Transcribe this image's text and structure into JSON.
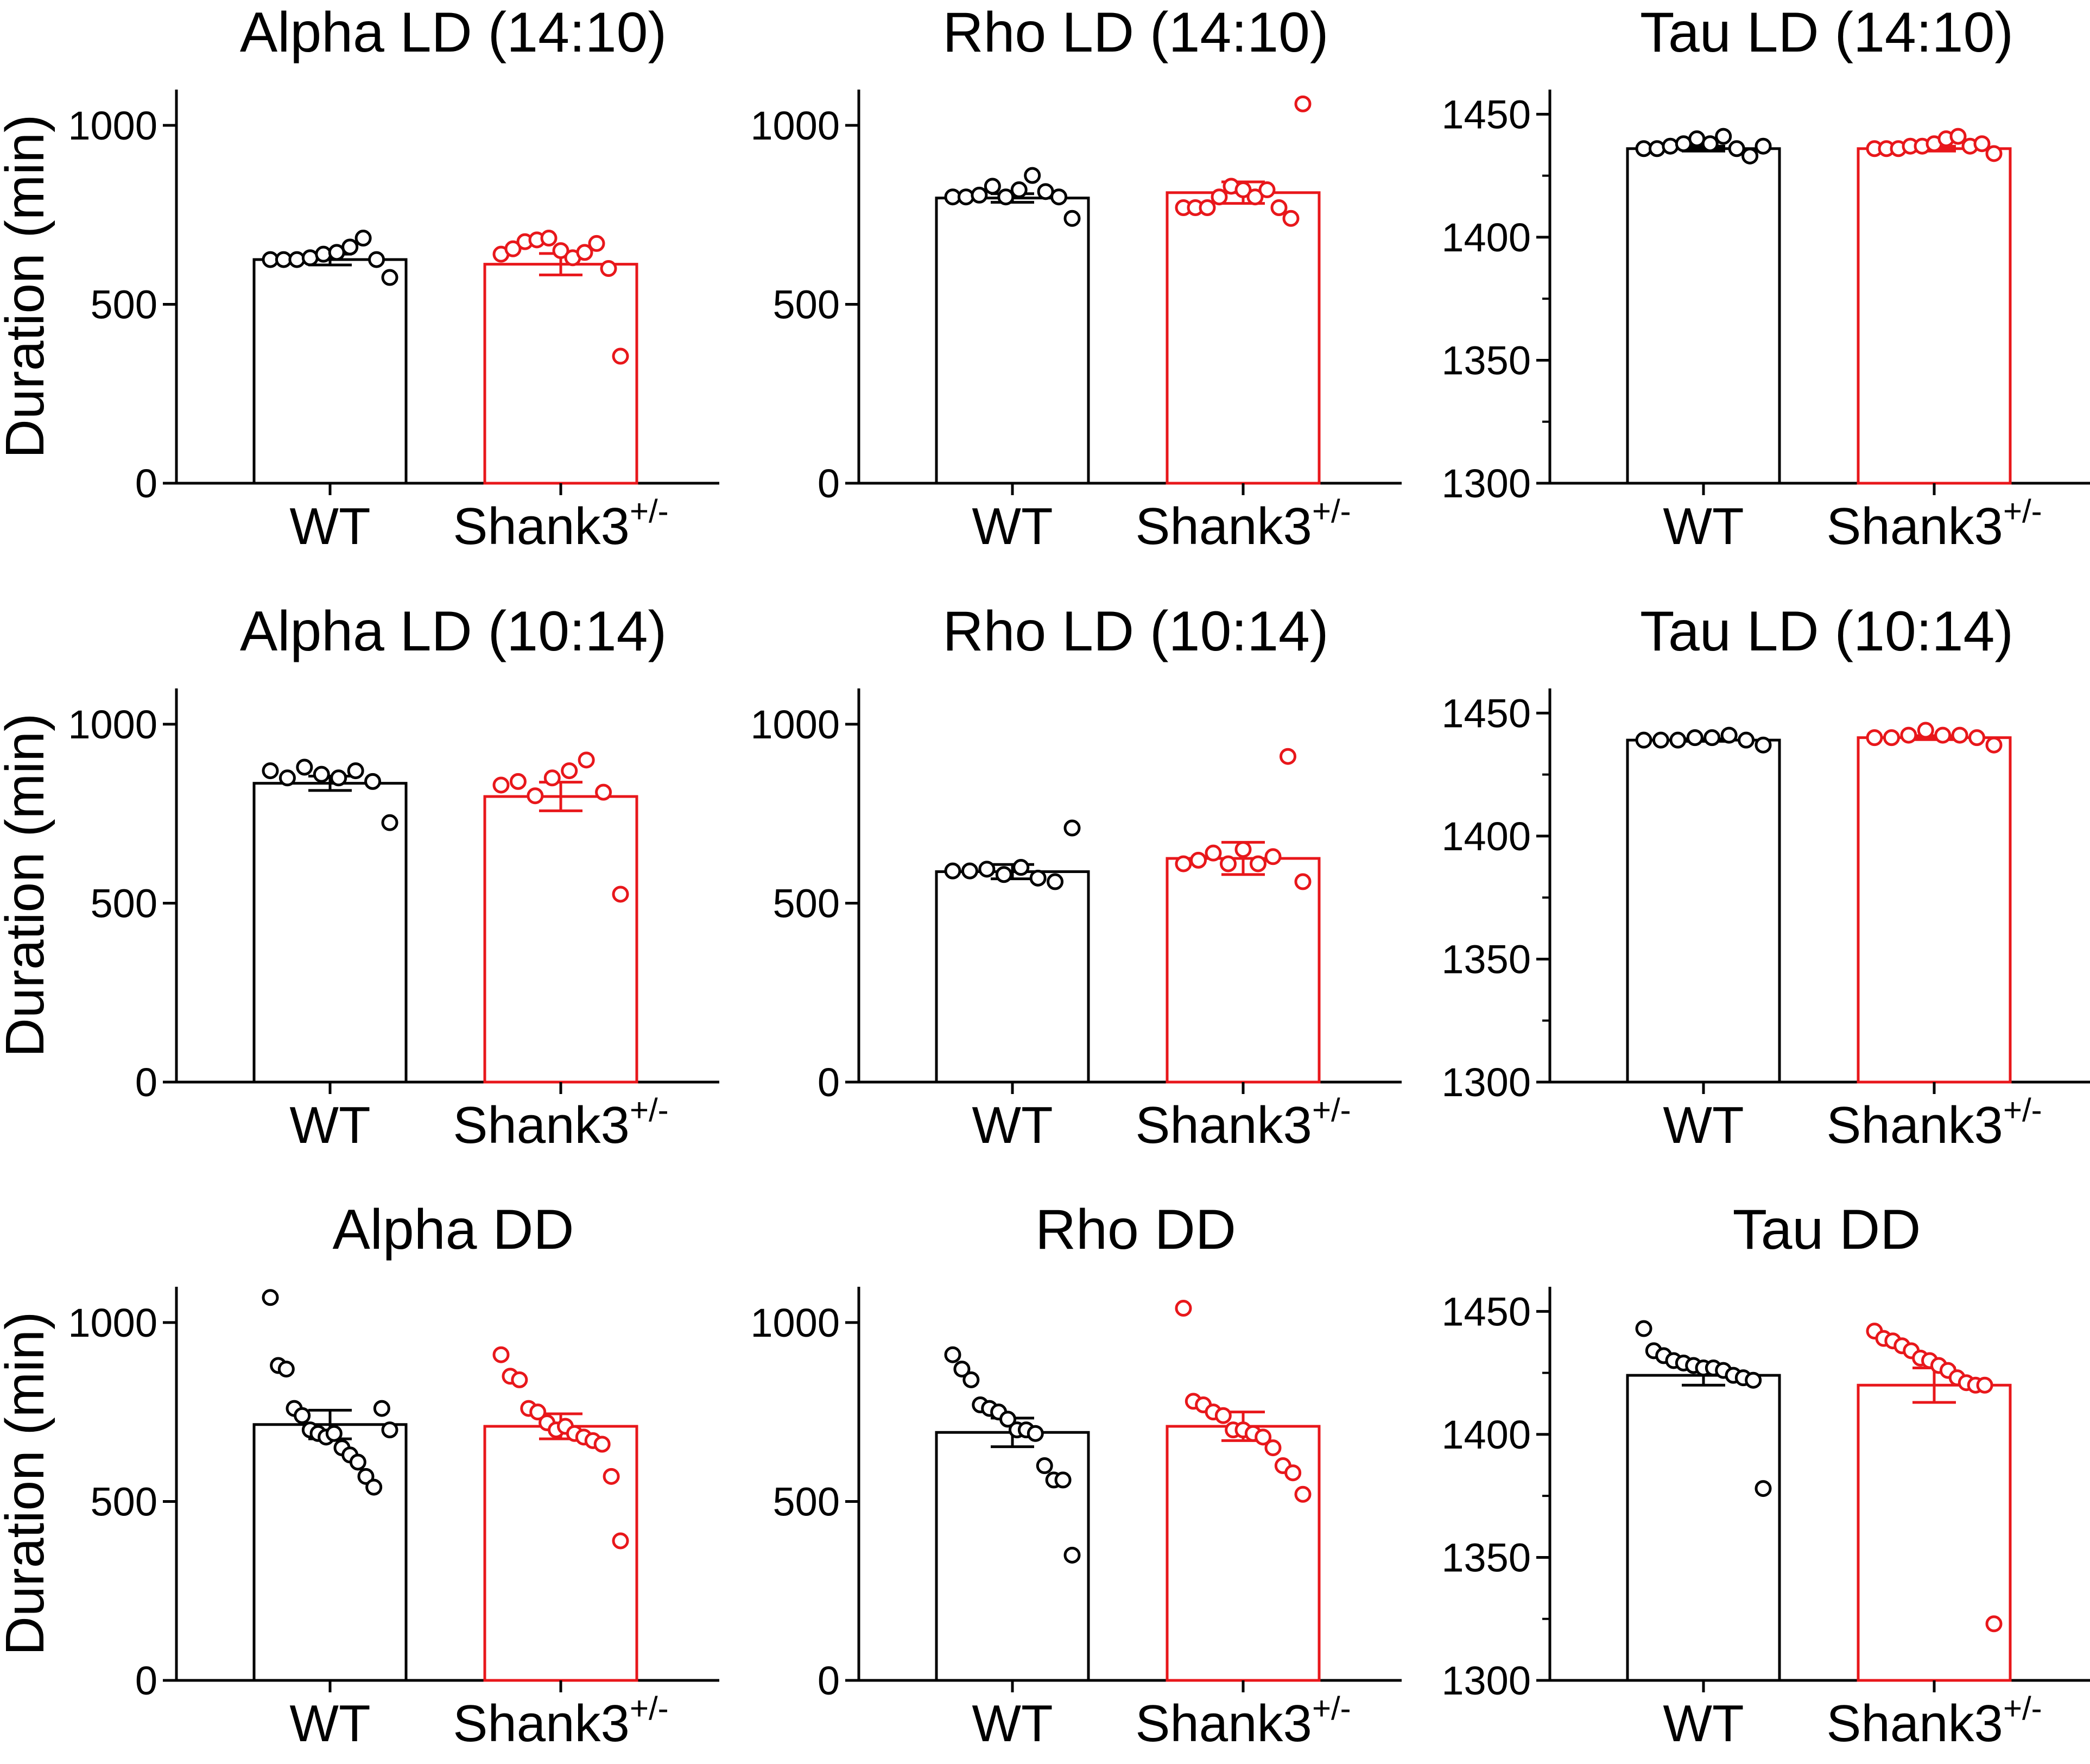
{
  "colors": {
    "wt": "#000000",
    "shank3": "#e8171b",
    "axis": "#000000"
  },
  "figure": {
    "ylabel": "Duration (min)"
  },
  "chart_data": [
    {
      "type": "bar",
      "title": "Alpha LD (14:10)",
      "ylabel": "Duration (min)",
      "ylim": [
        0,
        1100
      ],
      "yticks": [
        0,
        500,
        1000
      ],
      "ytick_labels": [
        "0",
        "500",
        "1000"
      ],
      "minor_ticks": false,
      "categories": [
        "WT",
        "Shank3"
      ],
      "category_superscripts": [
        "",
        "+/-"
      ],
      "series": [
        {
          "name": "WT",
          "mean": 625,
          "sem": 15,
          "points": [
            625,
            625,
            625,
            630,
            640,
            645,
            660,
            685,
            625,
            575
          ]
        },
        {
          "name": "Shank3+/-",
          "mean": 612,
          "sem": 30,
          "points": [
            640,
            655,
            675,
            680,
            685,
            650,
            630,
            645,
            670,
            600,
            355
          ]
        }
      ]
    },
    {
      "type": "bar",
      "title": "Rho LD (14:10)",
      "ylabel": "",
      "ylim": [
        0,
        1100
      ],
      "yticks": [
        0,
        500,
        1000
      ],
      "ytick_labels": [
        "0",
        "500",
        "1000"
      ],
      "minor_ticks": false,
      "categories": [
        "WT",
        "Shank3"
      ],
      "category_superscripts": [
        "",
        "+/-"
      ],
      "series": [
        {
          "name": "WT",
          "mean": 797,
          "sem": 12,
          "points": [
            800,
            800,
            805,
            830,
            800,
            820,
            860,
            815,
            800,
            740
          ]
        },
        {
          "name": "Shank3+/-",
          "mean": 812,
          "sem": 30,
          "points": [
            770,
            770,
            770,
            800,
            830,
            820,
            800,
            820,
            770,
            740,
            1060
          ]
        }
      ]
    },
    {
      "type": "bar",
      "title": "Tau LD (14:10)",
      "ylabel": "",
      "ylim": [
        1300,
        1460
      ],
      "yticks": [
        1300,
        1350,
        1400,
        1450
      ],
      "ytick_labels": [
        "1300",
        "1350",
        "1400",
        "1450"
      ],
      "minor_ticks": true,
      "categories": [
        "WT",
        "Shank3"
      ],
      "category_superscripts": [
        "",
        "+/-"
      ],
      "series": [
        {
          "name": "WT",
          "mean": 1436,
          "sem": 1,
          "points": [
            1436,
            1436,
            1437,
            1438,
            1440,
            1438,
            1441,
            1436,
            1433,
            1437
          ]
        },
        {
          "name": "Shank3+/-",
          "mean": 1436,
          "sem": 1,
          "points": [
            1436,
            1436,
            1436,
            1437,
            1437,
            1438,
            1440,
            1441,
            1437,
            1438,
            1434
          ]
        }
      ]
    },
    {
      "type": "bar",
      "title": "Alpha LD (10:14)",
      "ylabel": "Duration (min)",
      "ylim": [
        0,
        1100
      ],
      "yticks": [
        0,
        500,
        1000
      ],
      "ytick_labels": [
        "0",
        "500",
        "1000"
      ],
      "minor_ticks": false,
      "categories": [
        "WT",
        "Shank3"
      ],
      "category_superscripts": [
        "",
        "+/-"
      ],
      "series": [
        {
          "name": "WT",
          "mean": 835,
          "sem": 20,
          "points": [
            870,
            850,
            880,
            860,
            850,
            870,
            840,
            725
          ]
        },
        {
          "name": "Shank3+/-",
          "mean": 798,
          "sem": 40,
          "points": [
            830,
            840,
            800,
            850,
            870,
            900,
            810,
            525
          ]
        }
      ]
    },
    {
      "type": "bar",
      "title": "Rho LD (10:14)",
      "ylabel": "",
      "ylim": [
        0,
        1100
      ],
      "yticks": [
        0,
        500,
        1000
      ],
      "ytick_labels": [
        "0",
        "500",
        "1000"
      ],
      "minor_ticks": false,
      "categories": [
        "WT",
        "Shank3"
      ],
      "category_superscripts": [
        "",
        "+/-"
      ],
      "series": [
        {
          "name": "WT",
          "mean": 588,
          "sem": 20,
          "points": [
            590,
            590,
            595,
            580,
            600,
            570,
            560,
            710
          ]
        },
        {
          "name": "Shank3+/-",
          "mean": 625,
          "sem": 45,
          "points": [
            610,
            620,
            640,
            610,
            650,
            610,
            630,
            910,
            560
          ]
        }
      ]
    },
    {
      "type": "bar",
      "title": "Tau LD (10:14)",
      "ylabel": "",
      "ylim": [
        1300,
        1460
      ],
      "yticks": [
        1300,
        1350,
        1400,
        1450
      ],
      "ytick_labels": [
        "1300",
        "1350",
        "1400",
        "1450"
      ],
      "minor_ticks": true,
      "categories": [
        "WT",
        "Shank3"
      ],
      "category_superscripts": [
        "",
        "+/-"
      ],
      "series": [
        {
          "name": "WT",
          "mean": 1439,
          "sem": 0.5,
          "points": [
            1439,
            1439,
            1439,
            1440,
            1440,
            1441,
            1439,
            1437
          ]
        },
        {
          "name": "Shank3+/-",
          "mean": 1440,
          "sem": 0.8,
          "points": [
            1440,
            1440,
            1441,
            1443,
            1441,
            1441,
            1440,
            1437
          ]
        }
      ]
    },
    {
      "type": "bar",
      "title": "Alpha DD",
      "ylabel": "Duration (min)",
      "ylim": [
        0,
        1100
      ],
      "yticks": [
        0,
        500,
        1000
      ],
      "ytick_labels": [
        "0",
        "500",
        "1000"
      ],
      "minor_ticks": false,
      "categories": [
        "WT",
        "Shank3"
      ],
      "category_superscripts": [
        "",
        "+/-"
      ],
      "series": [
        {
          "name": "WT",
          "mean": 715,
          "sem": 40,
          "points": [
            1070,
            880,
            870,
            760,
            740,
            700,
            690,
            680,
            690,
            650,
            630,
            610,
            570,
            540,
            760,
            700
          ]
        },
        {
          "name": "Shank3+/-",
          "mean": 710,
          "sem": 35,
          "points": [
            910,
            850,
            840,
            760,
            750,
            720,
            700,
            710,
            690,
            680,
            670,
            660,
            570,
            390
          ]
        }
      ]
    },
    {
      "type": "bar",
      "title": "Rho DD",
      "ylabel": "",
      "ylim": [
        0,
        1100
      ],
      "yticks": [
        0,
        500,
        1000
      ],
      "ytick_labels": [
        "0",
        "500",
        "1000"
      ],
      "minor_ticks": false,
      "categories": [
        "WT",
        "Shank3"
      ],
      "category_superscripts": [
        "",
        "+/-"
      ],
      "series": [
        {
          "name": "WT",
          "mean": 693,
          "sem": 40,
          "points": [
            910,
            870,
            840,
            770,
            760,
            750,
            730,
            700,
            700,
            690,
            600,
            560,
            560,
            350
          ]
        },
        {
          "name": "Shank3+/-",
          "mean": 710,
          "sem": 40,
          "points": [
            1040,
            780,
            770,
            750,
            740,
            700,
            700,
            690,
            680,
            650,
            600,
            580,
            520
          ]
        }
      ]
    },
    {
      "type": "bar",
      "title": "Tau DD",
      "ylabel": "",
      "ylim": [
        1300,
        1460
      ],
      "yticks": [
        1300,
        1350,
        1400,
        1450
      ],
      "ytick_labels": [
        "1300",
        "1350",
        "1400",
        "1450"
      ],
      "minor_ticks": true,
      "categories": [
        "WT",
        "Shank3"
      ],
      "category_superscripts": [
        "",
        "+/-"
      ],
      "series": [
        {
          "name": "WT",
          "mean": 1424,
          "sem": 4,
          "points": [
            1443,
            1434,
            1432,
            1430,
            1429,
            1428,
            1427,
            1427,
            1426,
            1424,
            1423,
            1422,
            1378
          ]
        },
        {
          "name": "Shank3+/-",
          "mean": 1420,
          "sem": 7,
          "points": [
            1442,
            1439,
            1438,
            1436,
            1434,
            1431,
            1430,
            1428,
            1426,
            1423,
            1421,
            1420,
            1420,
            1323
          ]
        }
      ]
    }
  ]
}
